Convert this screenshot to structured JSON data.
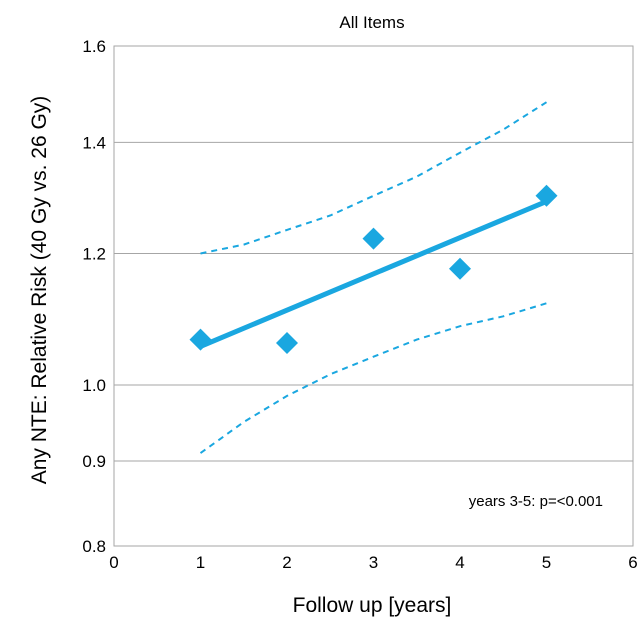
{
  "chart_data": {
    "type": "scatter",
    "title": "All Items",
    "xlabel": "Follow up [years]",
    "ylabel": "Any NTE: Relative Risk (40 Gy vs. 26 Gy)",
    "y_scale": "log",
    "xlim": [
      0,
      6
    ],
    "ylim": [
      0.8,
      1.6
    ],
    "x_ticks": [
      0,
      1,
      2,
      3,
      4,
      5,
      6
    ],
    "y_ticks": [
      0.8,
      0.9,
      1.0,
      1.2,
      1.4,
      1.6
    ],
    "y_tick_labels": [
      "0.8",
      "0.9",
      "1.0",
      "1.2",
      "1.4",
      "1.6"
    ],
    "grid": "horizontal",
    "annotation": "years 3-5: p=<0.001",
    "colors": {
      "series": "#1aa7e0",
      "grid": "#a6a6a6",
      "frame": "#a6a6a6"
    },
    "series": [
      {
        "kind": "points",
        "marker": "diamond",
        "x": [
          1,
          2,
          3,
          4,
          5
        ],
        "y": [
          1.065,
          1.06,
          1.225,
          1.175,
          1.3
        ]
      },
      {
        "kind": "fit-line",
        "x": [
          1,
          5
        ],
        "y": [
          1.055,
          1.29
        ]
      },
      {
        "kind": "upper-bound",
        "style": "dashed",
        "x": [
          1,
          1.5,
          2,
          2.5,
          3,
          3.5,
          4,
          4.5,
          5
        ],
        "y": [
          1.2,
          1.215,
          1.24,
          1.265,
          1.3,
          1.335,
          1.38,
          1.425,
          1.48
        ]
      },
      {
        "kind": "lower-bound",
        "style": "dashed",
        "x": [
          1,
          1.5,
          2,
          2.5,
          3,
          3.5,
          4,
          4.5,
          5
        ],
        "y": [
          0.91,
          0.95,
          0.985,
          1.015,
          1.04,
          1.065,
          1.085,
          1.1,
          1.12
        ]
      }
    ]
  }
}
